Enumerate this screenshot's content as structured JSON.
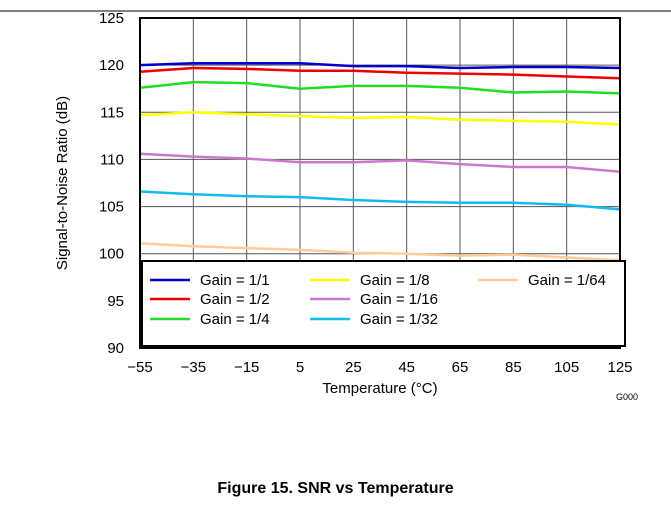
{
  "chart_data": {
    "type": "line",
    "xlabel": "Temperature (°C)",
    "ylabel": "Signal-to-Noise Ratio (dB)",
    "xlim": [
      -55,
      125
    ],
    "ylim": [
      90,
      125
    ],
    "x_ticks": [
      "−55",
      "−35",
      "−15",
      "5",
      "25",
      "45",
      "65",
      "85",
      "105",
      "125"
    ],
    "y_ticks": [
      "125",
      "120",
      "115",
      "110",
      "105",
      "100",
      "95",
      "90"
    ],
    "grid": true,
    "legend_position": "bottom",
    "x": [
      -55,
      -35,
      -15,
      5,
      25,
      45,
      65,
      85,
      105,
      125
    ],
    "series": [
      {
        "name": "Gain = 1/1",
        "color": "#0000cc",
        "values": [
          120.0,
          120.2,
          120.2,
          120.2,
          119.9,
          119.9,
          119.7,
          119.8,
          119.8,
          119.7
        ]
      },
      {
        "name": "Gain = 1/2",
        "color": "#ee0000",
        "values": [
          119.3,
          119.7,
          119.6,
          119.4,
          119.4,
          119.2,
          119.1,
          119.0,
          118.8,
          118.6
        ]
      },
      {
        "name": "Gain = 1/4",
        "color": "#22dd22",
        "values": [
          117.6,
          118.2,
          118.1,
          117.5,
          117.8,
          117.8,
          117.6,
          117.1,
          117.2,
          117.0
        ]
      },
      {
        "name": "Gain = 1/8",
        "color": "#ffff00",
        "values": [
          114.7,
          115.0,
          114.8,
          114.6,
          114.4,
          114.5,
          114.2,
          114.1,
          114.0,
          113.7
        ]
      },
      {
        "name": "Gain = 1/16",
        "color": "#cc77cc",
        "values": [
          110.6,
          110.3,
          110.1,
          109.7,
          109.7,
          109.9,
          109.5,
          109.2,
          109.2,
          108.7
        ]
      },
      {
        "name": "Gain = 1/32",
        "color": "#11bbee",
        "values": [
          106.6,
          106.3,
          106.1,
          106.0,
          105.7,
          105.5,
          105.4,
          105.4,
          105.2,
          104.7
        ]
      },
      {
        "name": "Gain = 1/64",
        "color": "#ffcc99",
        "values": [
          101.1,
          100.8,
          100.6,
          100.4,
          100.1,
          100.0,
          99.8,
          99.9,
          99.6,
          99.3
        ]
      }
    ]
  },
  "figure_code": "G000",
  "caption": "Figure 15. SNR vs Temperature"
}
